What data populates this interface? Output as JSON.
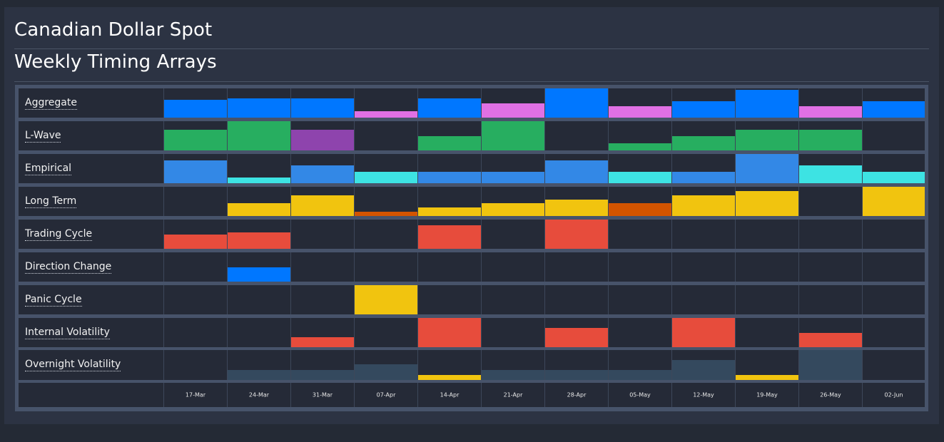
{
  "header": {
    "title": "Canadian Dollar Spot",
    "subtitle": "Weekly Timing Arrays"
  },
  "colors": {
    "blue": "#0077ff",
    "blue_light": "#3388e6",
    "magenta": "#e070e4",
    "green": "#27ae60",
    "purple": "#8e44ad",
    "cyan": "#3de3e3",
    "yellow": "#f1c40f",
    "orange": "#d35400",
    "red": "#e74c3c",
    "slate": "#34495e",
    "cell_bg": "#252a37"
  },
  "weeks": [
    "17-Mar",
    "24-Mar",
    "31-Mar",
    "07-Apr",
    "14-Apr",
    "21-Apr",
    "28-Apr",
    "05-May",
    "12-May",
    "19-May",
    "26-May",
    "02-Jun"
  ],
  "rows": [
    {
      "label": "Aggregate",
      "cells": [
        {
          "level": 0.62,
          "color": "blue"
        },
        {
          "level": 0.67,
          "color": "blue"
        },
        {
          "level": 0.67,
          "color": "blue"
        },
        {
          "level": 0.22,
          "color": "magenta"
        },
        {
          "level": 0.67,
          "color": "blue"
        },
        {
          "level": 0.5,
          "color": "magenta"
        },
        {
          "level": 1.0,
          "color": "blue"
        },
        {
          "level": 0.38,
          "color": "magenta"
        },
        {
          "level": 0.57,
          "color": "blue"
        },
        {
          "level": 0.95,
          "color": "blue"
        },
        {
          "level": 0.38,
          "color": "magenta"
        },
        {
          "level": 0.57,
          "color": "blue"
        }
      ]
    },
    {
      "label": "L-Wave",
      "cells": [
        {
          "level": 0.71,
          "color": "green"
        },
        {
          "level": 1.0,
          "color": "green"
        },
        {
          "level": 0.71,
          "color": "purple"
        },
        {
          "level": 0,
          "color": "green"
        },
        {
          "level": 0.48,
          "color": "green"
        },
        {
          "level": 1.0,
          "color": "green"
        },
        {
          "level": 0,
          "color": "green"
        },
        {
          "level": 0.24,
          "color": "green"
        },
        {
          "level": 0.48,
          "color": "green"
        },
        {
          "level": 0.71,
          "color": "green"
        },
        {
          "level": 0.71,
          "color": "green"
        },
        {
          "level": 0,
          "color": "green"
        }
      ]
    },
    {
      "label": "Empirical",
      "cells": [
        {
          "level": 0.79,
          "color": "blue_light"
        },
        {
          "level": 0.19,
          "color": "cyan"
        },
        {
          "level": 0.6,
          "color": "blue_light"
        },
        {
          "level": 0.38,
          "color": "cyan"
        },
        {
          "level": 0.38,
          "color": "blue_light"
        },
        {
          "level": 0.38,
          "color": "blue_light"
        },
        {
          "level": 0.79,
          "color": "blue_light"
        },
        {
          "level": 0.38,
          "color": "cyan"
        },
        {
          "level": 0.38,
          "color": "blue_light"
        },
        {
          "level": 1.0,
          "color": "blue_light"
        },
        {
          "level": 0.6,
          "color": "cyan"
        },
        {
          "level": 0.38,
          "color": "cyan"
        }
      ]
    },
    {
      "label": "Long Term",
      "cells": [
        {
          "level": 0,
          "color": "yellow"
        },
        {
          "level": 0.43,
          "color": "yellow"
        },
        {
          "level": 0.71,
          "color": "yellow"
        },
        {
          "level": 0.14,
          "color": "orange"
        },
        {
          "level": 0.29,
          "color": "yellow"
        },
        {
          "level": 0.43,
          "color": "yellow"
        },
        {
          "level": 0.57,
          "color": "yellow"
        },
        {
          "level": 0.43,
          "color": "orange"
        },
        {
          "level": 0.71,
          "color": "yellow"
        },
        {
          "level": 0.86,
          "color": "yellow"
        },
        {
          "level": 0,
          "color": "yellow"
        },
        {
          "level": 1.0,
          "color": "yellow"
        }
      ]
    },
    {
      "label": "Trading Cycle",
      "cells": [
        {
          "level": 0.5,
          "color": "red"
        },
        {
          "level": 0.57,
          "color": "red"
        },
        {
          "level": 0,
          "color": "red"
        },
        {
          "level": 0,
          "color": "red"
        },
        {
          "level": 0.81,
          "color": "red"
        },
        {
          "level": 0,
          "color": "red"
        },
        {
          "level": 1.0,
          "color": "red"
        },
        {
          "level": 0,
          "color": "red"
        },
        {
          "level": 0,
          "color": "red"
        },
        {
          "level": 0,
          "color": "red"
        },
        {
          "level": 0,
          "color": "red"
        },
        {
          "level": 0,
          "color": "red"
        }
      ]
    },
    {
      "label": "Direction Change",
      "cells": [
        {
          "level": 0,
          "color": "blue"
        },
        {
          "level": 0.48,
          "color": "blue"
        },
        {
          "level": 0,
          "color": "blue"
        },
        {
          "level": 0,
          "color": "blue"
        },
        {
          "level": 0,
          "color": "blue"
        },
        {
          "level": 0,
          "color": "blue"
        },
        {
          "level": 0,
          "color": "blue"
        },
        {
          "level": 0,
          "color": "blue"
        },
        {
          "level": 0,
          "color": "blue"
        },
        {
          "level": 0,
          "color": "blue"
        },
        {
          "level": 0,
          "color": "blue"
        },
        {
          "level": 0,
          "color": "blue"
        }
      ]
    },
    {
      "label": "Panic Cycle",
      "cells": [
        {
          "level": 0,
          "color": "yellow"
        },
        {
          "level": 0,
          "color": "yellow"
        },
        {
          "level": 0,
          "color": "yellow"
        },
        {
          "level": 1.0,
          "color": "yellow"
        },
        {
          "level": 0,
          "color": "yellow"
        },
        {
          "level": 0,
          "color": "yellow"
        },
        {
          "level": 0,
          "color": "yellow"
        },
        {
          "level": 0,
          "color": "yellow"
        },
        {
          "level": 0,
          "color": "yellow"
        },
        {
          "level": 0,
          "color": "yellow"
        },
        {
          "level": 0,
          "color": "yellow"
        },
        {
          "level": 0,
          "color": "yellow"
        }
      ]
    },
    {
      "label": "Internal Volatility",
      "cells": [
        {
          "level": 0,
          "color": "red"
        },
        {
          "level": 0,
          "color": "red"
        },
        {
          "level": 0.33,
          "color": "red"
        },
        {
          "level": 0,
          "color": "red"
        },
        {
          "level": 1.0,
          "color": "red"
        },
        {
          "level": 0,
          "color": "red"
        },
        {
          "level": 0.67,
          "color": "red"
        },
        {
          "level": 0,
          "color": "red"
        },
        {
          "level": 1.0,
          "color": "red"
        },
        {
          "level": 0,
          "color": "red"
        },
        {
          "level": 0.48,
          "color": "red"
        },
        {
          "level": 0,
          "color": "red"
        }
      ]
    },
    {
      "label": "Overnight Volatility",
      "cells": [
        {
          "level": 0,
          "color": "slate"
        },
        {
          "level": 0.33,
          "color": "slate"
        },
        {
          "level": 0.33,
          "color": "slate"
        },
        {
          "level": 0.52,
          "color": "slate"
        },
        {
          "level": 0.17,
          "color": "yellow"
        },
        {
          "level": 0.33,
          "color": "slate"
        },
        {
          "level": 0.33,
          "color": "slate"
        },
        {
          "level": 0.33,
          "color": "slate"
        },
        {
          "level": 0.67,
          "color": "slate"
        },
        {
          "level": 0.17,
          "color": "yellow"
        },
        {
          "level": 1.0,
          "color": "slate"
        },
        {
          "level": 0,
          "color": "slate"
        }
      ]
    }
  ]
}
